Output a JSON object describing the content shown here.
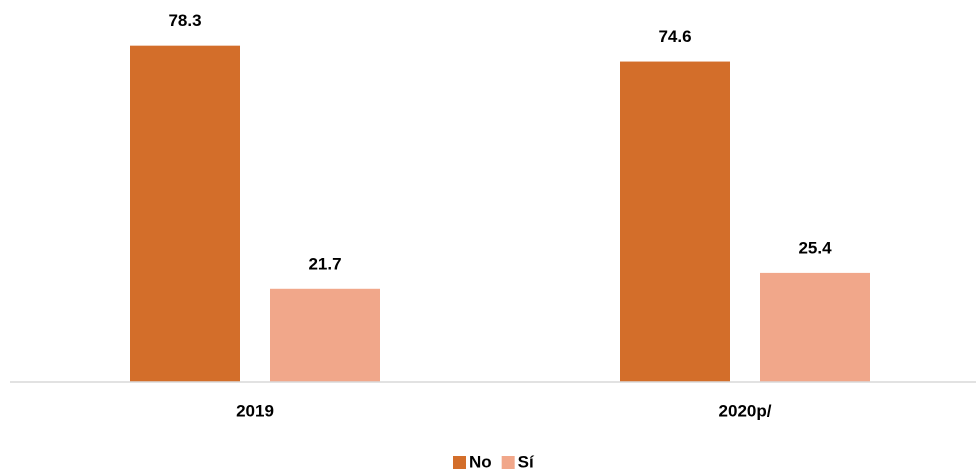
{
  "chart_data": {
    "type": "bar",
    "categories": [
      "2019",
      "2020p/"
    ],
    "series": [
      {
        "name": "No",
        "color": "#d36e2a",
        "values": [
          78.3,
          74.6
        ]
      },
      {
        "name": "Sí",
        "color": "#f1a78a",
        "values": [
          21.7,
          25.4
        ]
      }
    ],
    "ylim": [
      0,
      88
    ],
    "legend": "bottom"
  }
}
